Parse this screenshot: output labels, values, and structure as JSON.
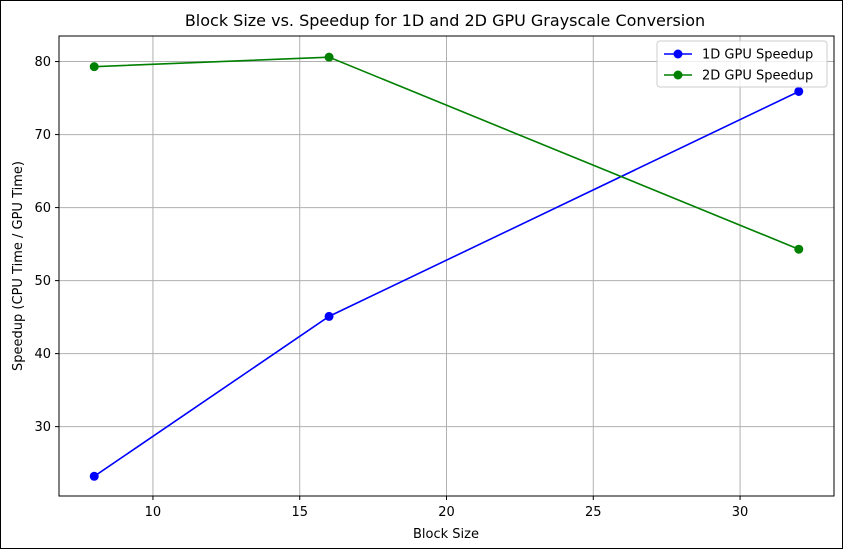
{
  "chart_data": {
    "type": "line",
    "title": "Block Size vs. Speedup for 1D and 2D GPU Grayscale Conversion",
    "xlabel": "Block Size",
    "ylabel": "Speedup (CPU Time / GPU Time)",
    "x": [
      8,
      16,
      32
    ],
    "xlim": [
      6.8,
      33.2
    ],
    "ylim": [
      20.5,
      83.5
    ],
    "xticks": [
      10,
      15,
      20,
      25,
      30
    ],
    "yticks": [
      30,
      40,
      50,
      60,
      70,
      80
    ],
    "grid": true,
    "legend_position": "top-right",
    "series": [
      {
        "name": "1D GPU Speedup",
        "color": "#0000ff",
        "marker": "circle",
        "values": [
          23.2,
          45.1,
          75.9
        ]
      },
      {
        "name": "2D GPU Speedup",
        "color": "#008000",
        "marker": "circle",
        "values": [
          79.3,
          80.6,
          54.3
        ]
      }
    ]
  }
}
